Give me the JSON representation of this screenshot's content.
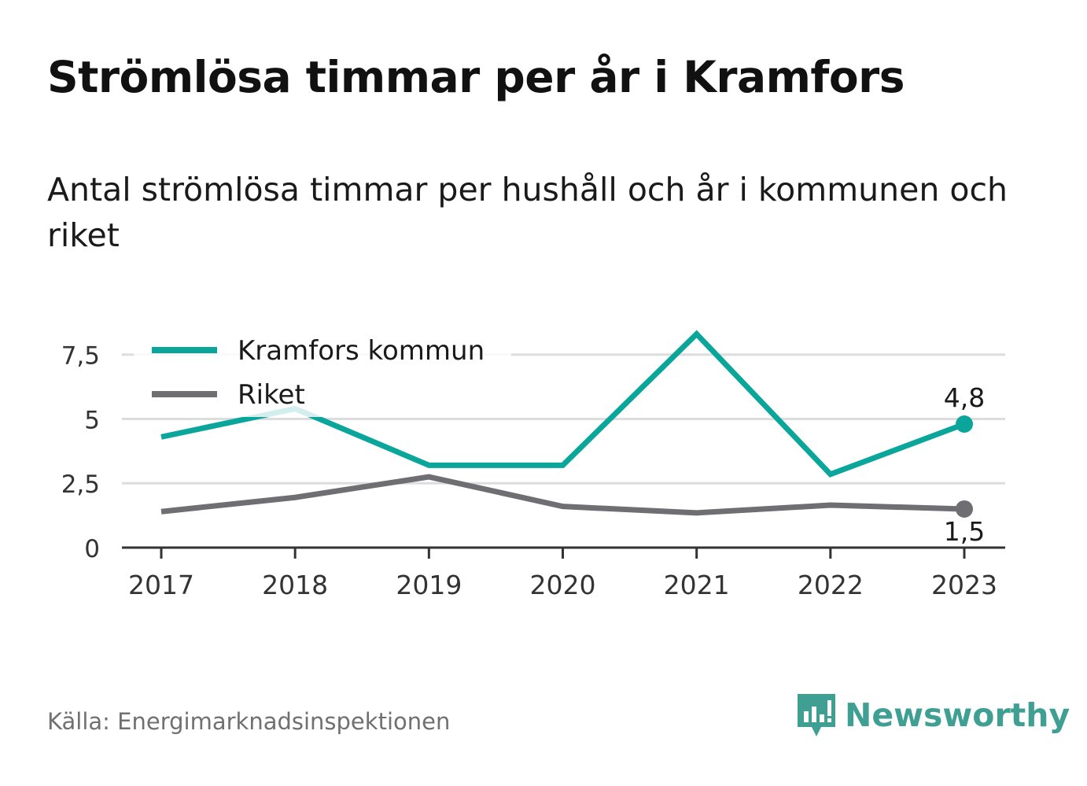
{
  "header": {
    "title": "Strömlösa timmar per år i Kramfors",
    "subtitle": "Antal strömlösa timmar per hushåll och år i kommunen och riket"
  },
  "footer": {
    "source": "Källa: Energimarknadsinspektionen",
    "brand": "Newsworthy"
  },
  "colors": {
    "kramfors": "#0aa59b",
    "riket": "#6e6e73",
    "grid": "#dddddd",
    "axis": "#333333",
    "brand": "#3f9f93"
  },
  "chart_data": {
    "type": "line",
    "x": [
      "2017",
      "2018",
      "2019",
      "2020",
      "2021",
      "2022",
      "2023"
    ],
    "y_ticks": [
      "0",
      "2,5",
      "5",
      "7,5"
    ],
    "ylim": [
      0,
      8.5
    ],
    "grid": true,
    "legend_position": "top-left",
    "series": [
      {
        "name": "Kramfors kommun",
        "values": [
          4.3,
          5.4,
          3.2,
          3.2,
          8.3,
          2.85,
          4.8
        ],
        "end_label": "4,8"
      },
      {
        "name": "Riket",
        "values": [
          1.4,
          1.95,
          2.75,
          1.6,
          1.35,
          1.65,
          1.5
        ],
        "end_label": "1,5"
      }
    ]
  }
}
